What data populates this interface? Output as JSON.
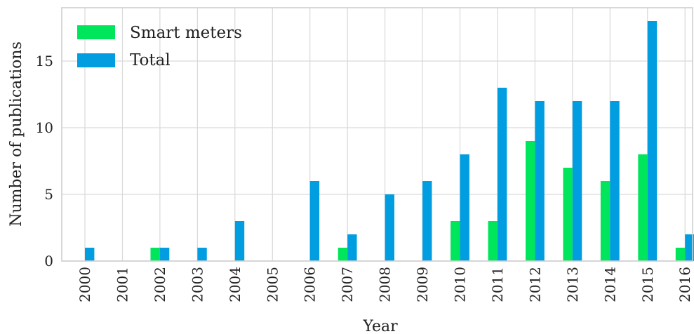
{
  "chart_data": {
    "type": "bar",
    "categories": [
      "2000",
      "2001",
      "2002",
      "2003",
      "2004",
      "2005",
      "2006",
      "2007",
      "2008",
      "2009",
      "2010",
      "2011",
      "2012",
      "2013",
      "2014",
      "2015",
      "2016"
    ],
    "series": [
      {
        "name": "Smart meters",
        "color": "#00e65c",
        "values": [
          0,
          0,
          1,
          0,
          0,
          0,
          0,
          1,
          0,
          0,
          3,
          3,
          9,
          7,
          6,
          8,
          1
        ]
      },
      {
        "name": "Total",
        "color": "#009ee0",
        "values": [
          1,
          0,
          1,
          1,
          3,
          0,
          6,
          2,
          5,
          6,
          8,
          13,
          12,
          12,
          12,
          18,
          2
        ]
      }
    ],
    "xlabel": "Year",
    "ylabel": "Number of publications",
    "ylim": [
      0,
      19
    ],
    "yticks": [
      0,
      5,
      10,
      15
    ],
    "grid": true,
    "legend_position": "top-left"
  }
}
